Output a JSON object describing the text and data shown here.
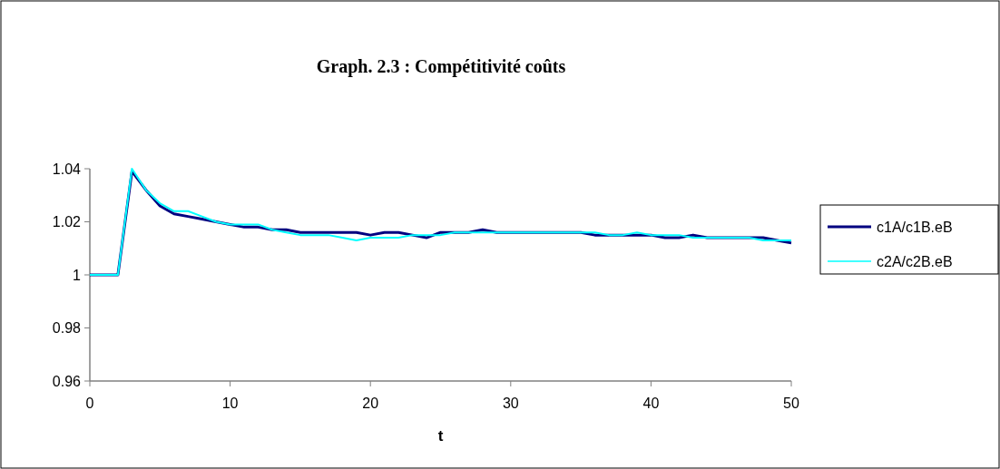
{
  "chart_data": {
    "type": "line",
    "title": "Graph. 2.3 : Compétitivité coûts",
    "xlabel": "t",
    "x": [
      0,
      1,
      2,
      3,
      4,
      5,
      6,
      7,
      8,
      9,
      10,
      11,
      12,
      13,
      14,
      15,
      16,
      17,
      18,
      19,
      20,
      21,
      22,
      23,
      24,
      25,
      26,
      27,
      28,
      29,
      30,
      31,
      32,
      33,
      34,
      35,
      36,
      37,
      38,
      39,
      40,
      41,
      42,
      43,
      44,
      45,
      46,
      47,
      48,
      49,
      50
    ],
    "series": [
      {
        "name": "c1A/c1B.eB",
        "color": "#000080",
        "values": [
          1,
          1,
          1,
          1.039,
          1.032,
          1.026,
          1.023,
          1.022,
          1.021,
          1.02,
          1.019,
          1.018,
          1.018,
          1.017,
          1.017,
          1.016,
          1.016,
          1.016,
          1.016,
          1.016,
          1.015,
          1.016,
          1.016,
          1.015,
          1.014,
          1.016,
          1.016,
          1.016,
          1.017,
          1.016,
          1.016,
          1.016,
          1.016,
          1.016,
          1.016,
          1.016,
          1.015,
          1.015,
          1.015,
          1.015,
          1.015,
          1.014,
          1.014,
          1.015,
          1.014,
          1.014,
          1.014,
          1.014,
          1.014,
          1.013,
          1.012
        ]
      },
      {
        "name": "c2A/c2B.eB",
        "color": "#00ffff",
        "values": [
          1,
          1,
          1,
          1.04,
          1.032,
          1.027,
          1.024,
          1.024,
          1.022,
          1.02,
          1.019,
          1.019,
          1.019,
          1.017,
          1.016,
          1.015,
          1.015,
          1.015,
          1.014,
          1.013,
          1.014,
          1.014,
          1.014,
          1.015,
          1.015,
          1.015,
          1.016,
          1.016,
          1.016,
          1.016,
          1.016,
          1.016,
          1.016,
          1.016,
          1.016,
          1.016,
          1.016,
          1.015,
          1.015,
          1.016,
          1.015,
          1.015,
          1.015,
          1.014,
          1.014,
          1.014,
          1.014,
          1.014,
          1.013,
          1.013,
          1.013
        ]
      }
    ],
    "xlim": [
      0,
      50
    ],
    "xticks": [
      0,
      10,
      20,
      30,
      40,
      50
    ],
    "ylim": [
      0.96,
      1.04
    ],
    "yticks": [
      0.96,
      {
        "value": 0.98,
        "label": "0.98"
      },
      {
        "value": 1,
        "label": "1"
      },
      {
        "value": 1.02,
        "label": "1.02"
      },
      {
        "value": 1.04,
        "label": "1.04"
      }
    ],
    "grid": false,
    "legend": "right",
    "marker": "none",
    "line_style": "solid"
  }
}
